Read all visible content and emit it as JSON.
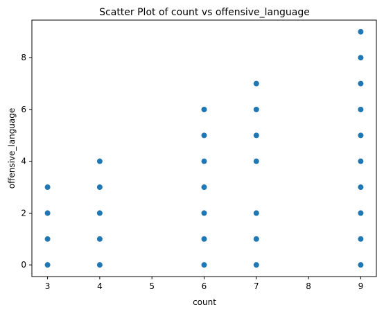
{
  "chart_data": {
    "type": "scatter",
    "title": "Scatter Plot of count vs offensive_language",
    "xlabel": "count",
    "ylabel": "offensive_language",
    "xlim": [
      2.7,
      9.3
    ],
    "ylim": [
      -0.45,
      9.45
    ],
    "xticks": [
      3,
      4,
      5,
      6,
      7,
      8,
      9
    ],
    "yticks": [
      0,
      2,
      4,
      6,
      8
    ],
    "grid": false,
    "legend": "none",
    "point_color": "#1f77b4",
    "points": [
      {
        "x": 3,
        "y": 0
      },
      {
        "x": 3,
        "y": 1
      },
      {
        "x": 3,
        "y": 2
      },
      {
        "x": 3,
        "y": 3
      },
      {
        "x": 4,
        "y": 0
      },
      {
        "x": 4,
        "y": 1
      },
      {
        "x": 4,
        "y": 2
      },
      {
        "x": 4,
        "y": 3
      },
      {
        "x": 4,
        "y": 4
      },
      {
        "x": 6,
        "y": 0
      },
      {
        "x": 6,
        "y": 1
      },
      {
        "x": 6,
        "y": 2
      },
      {
        "x": 6,
        "y": 3
      },
      {
        "x": 6,
        "y": 4
      },
      {
        "x": 6,
        "y": 5
      },
      {
        "x": 6,
        "y": 6
      },
      {
        "x": 7,
        "y": 0
      },
      {
        "x": 7,
        "y": 1
      },
      {
        "x": 7,
        "y": 2
      },
      {
        "x": 7,
        "y": 4
      },
      {
        "x": 7,
        "y": 5
      },
      {
        "x": 7,
        "y": 6
      },
      {
        "x": 7,
        "y": 7
      },
      {
        "x": 9,
        "y": 0
      },
      {
        "x": 9,
        "y": 1
      },
      {
        "x": 9,
        "y": 2
      },
      {
        "x": 9,
        "y": 3
      },
      {
        "x": 9,
        "y": 4
      },
      {
        "x": 9,
        "y": 5
      },
      {
        "x": 9,
        "y": 6
      },
      {
        "x": 9,
        "y": 7
      },
      {
        "x": 9,
        "y": 8
      },
      {
        "x": 9,
        "y": 9
      }
    ]
  }
}
